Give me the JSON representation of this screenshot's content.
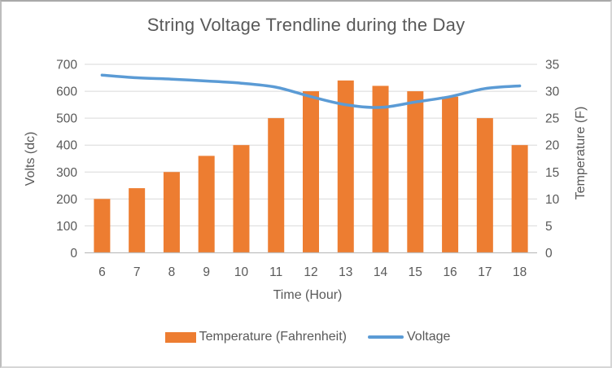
{
  "window": {
    "background": "#FFFFFF",
    "border_color": "#C9C9C9"
  },
  "chart_data": {
    "type": "combo-bar-line",
    "title": "String Voltage Trendline during the Day",
    "xlabel": "Time (Hour)",
    "ylabel_left": "Volts (dc)",
    "ylabel_right": "Temperature (F)",
    "categories": [
      "6",
      "7",
      "8",
      "9",
      "10",
      "11",
      "12",
      "13",
      "14",
      "15",
      "16",
      "17",
      "18"
    ],
    "series": [
      {
        "name": "Temperature (Fahrenheit)",
        "type": "bar",
        "axis": "right",
        "color": "#ED7D31",
        "values": [
          10,
          12,
          15,
          18,
          20,
          25,
          30,
          32,
          31,
          30,
          29,
          25,
          20
        ]
      },
      {
        "name": "Voltage",
        "type": "line",
        "axis": "left",
        "color": "#5B9BD5",
        "values": [
          660,
          650,
          645,
          638,
          630,
          615,
          580,
          550,
          540,
          560,
          580,
          610,
          620
        ]
      }
    ],
    "axis_left": {
      "min": 0,
      "max": 700,
      "step": 100,
      "ticks": [
        0,
        100,
        200,
        300,
        400,
        500,
        600,
        700
      ]
    },
    "axis_right": {
      "min": 0,
      "max": 35,
      "step": 5,
      "ticks": [
        0,
        5,
        10,
        15,
        20,
        25,
        30,
        35
      ]
    },
    "grid": true,
    "legend_position": "bottom",
    "text_color": "#595959",
    "gridline_color": "#D9D9D9",
    "axisline_color": "#BFBFBF"
  }
}
